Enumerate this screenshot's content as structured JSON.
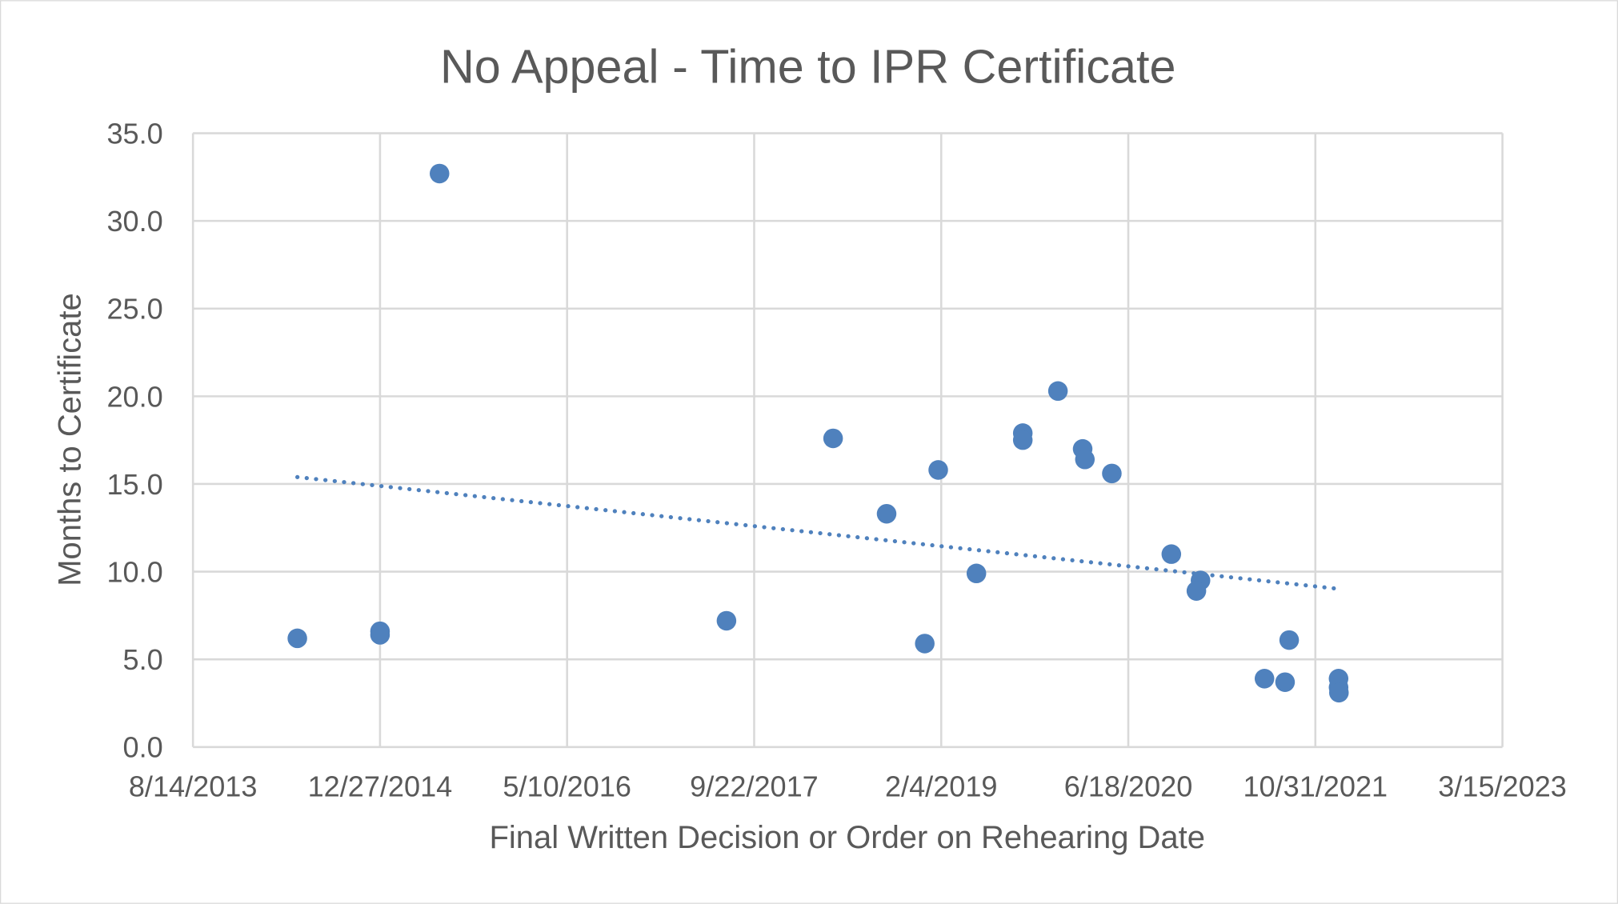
{
  "chart_data": {
    "type": "scatter",
    "title": "No Appeal - Time to IPR Certificate",
    "xlabel": "Final Written Decision or Order on Rehearing Date",
    "ylabel": "Months to Certificate",
    "xlim": [
      "2013-08-14",
      "2023-03-15"
    ],
    "ylim": [
      0,
      35
    ],
    "x_tick_labels": [
      "8/14/2013",
      "12/27/2014",
      "5/10/2016",
      "9/22/2017",
      "2/4/2019",
      "6/18/2020",
      "10/31/2021",
      "3/15/2023"
    ],
    "x_ticks": [
      "2013-08-14",
      "2014-12-27",
      "2016-05-10",
      "2017-09-22",
      "2019-02-04",
      "2020-06-18",
      "2021-10-31",
      "2023-03-15"
    ],
    "y_tick_labels": [
      "0.0",
      "5.0",
      "10.0",
      "15.0",
      "20.0",
      "25.0",
      "30.0",
      "35.0"
    ],
    "y_ticks": [
      0,
      5,
      10,
      15,
      20,
      25,
      30,
      35
    ],
    "grid": true,
    "trendline": "linear (dotted)",
    "marker_color": "#4F81BD",
    "points": [
      {
        "x": "2014-05-20",
        "y": 6.2
      },
      {
        "x": "2014-12-27",
        "y": 6.6
      },
      {
        "x": "2014-12-27",
        "y": 6.4
      },
      {
        "x": "2015-06-04",
        "y": 32.7
      },
      {
        "x": "2017-07-10",
        "y": 7.2
      },
      {
        "x": "2018-04-21",
        "y": 17.6
      },
      {
        "x": "2018-09-11",
        "y": 13.3
      },
      {
        "x": "2018-12-22",
        "y": 5.9
      },
      {
        "x": "2019-01-27",
        "y": 15.8
      },
      {
        "x": "2019-05-09",
        "y": 9.9
      },
      {
        "x": "2019-09-10",
        "y": 17.9
      },
      {
        "x": "2019-09-10",
        "y": 17.5
      },
      {
        "x": "2019-12-13",
        "y": 20.3
      },
      {
        "x": "2020-02-17",
        "y": 17.0
      },
      {
        "x": "2020-02-23",
        "y": 16.4
      },
      {
        "x": "2020-05-05",
        "y": 15.6
      },
      {
        "x": "2020-10-11",
        "y": 11.0
      },
      {
        "x": "2020-12-28",
        "y": 9.5
      },
      {
        "x": "2020-12-17",
        "y": 8.9
      },
      {
        "x": "2021-06-17",
        "y": 3.9
      },
      {
        "x": "2021-08-11",
        "y": 3.7
      },
      {
        "x": "2021-08-22",
        "y": 6.1
      },
      {
        "x": "2022-01-01",
        "y": 3.9
      },
      {
        "x": "2022-01-01",
        "y": 3.4
      },
      {
        "x": "2022-01-02",
        "y": 3.1
      }
    ]
  }
}
